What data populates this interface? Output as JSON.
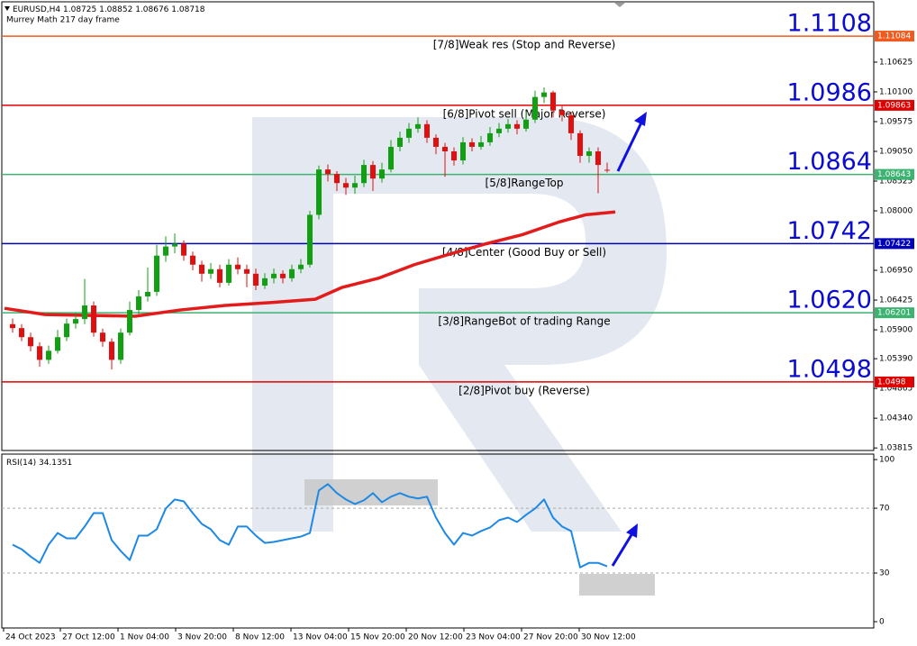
{
  "chart_data": [
    {
      "type": "candlestick",
      "title": "EURUSD,H4",
      "subtitle": "Murrey Math 217 day frame",
      "x": [
        12,
        22,
        32,
        42,
        52,
        62,
        72,
        82,
        92,
        102,
        112,
        122,
        132,
        142,
        152,
        162,
        172,
        182,
        192,
        202,
        212,
        222,
        232,
        242,
        252,
        262,
        272,
        282,
        292,
        302,
        312,
        322,
        332,
        342,
        352,
        362,
        372,
        382,
        392,
        402,
        412,
        422,
        432,
        442,
        452,
        462,
        472,
        482,
        492,
        502,
        512,
        522,
        532,
        542,
        552,
        562,
        572,
        582,
        592,
        602,
        612,
        622,
        632,
        642,
        652,
        662,
        672
      ],
      "open": [
        1.06,
        1.0593,
        1.0577,
        1.0561,
        1.0537,
        1.0553,
        1.0577,
        1.0601,
        1.0609,
        1.0633,
        1.0585,
        1.0569,
        1.0537,
        1.0585,
        1.0625,
        1.0649,
        1.0657,
        1.0721,
        1.0737,
        1.0742,
        1.0721,
        1.0705,
        1.0689,
        1.0697,
        1.0673,
        1.0705,
        1.0697,
        1.0689,
        1.0668,
        1.0681,
        1.0689,
        1.0681,
        1.0697,
        1.0705,
        1.0793,
        1.0873,
        1.0865,
        1.0849,
        1.0841,
        1.0849,
        1.0881,
        1.0857,
        1.0873,
        1.0913,
        1.0929,
        1.0945,
        1.0953,
        1.0929,
        1.0913,
        1.0905,
        1.0889,
        1.0921,
        1.0913,
        1.0921,
        1.0937,
        1.0945,
        1.0953,
        1.0945,
        1.0961,
        1.1001,
        1.1009,
        1.0977,
        1.0969,
        1.0937,
        1.0897,
        1.0905,
        1.08725
      ],
      "high": [
        1.061,
        1.06,
        1.0585,
        1.0568,
        1.0562,
        1.059,
        1.061,
        1.062,
        1.068,
        1.064,
        1.0592,
        1.0575,
        1.0592,
        1.064,
        1.066,
        1.07,
        1.074,
        1.0755,
        1.076,
        1.0748,
        1.0728,
        1.0712,
        1.0708,
        1.0705,
        1.0715,
        1.0718,
        1.0705,
        1.0698,
        1.069,
        1.0698,
        1.0695,
        1.0705,
        1.0715,
        1.08,
        1.088,
        1.0882,
        1.087,
        1.0858,
        1.0862,
        1.089,
        1.0888,
        1.0885,
        1.0925,
        1.094,
        1.0955,
        1.0965,
        1.096,
        1.0935,
        1.092,
        1.0912,
        1.093,
        1.0928,
        1.0932,
        1.0948,
        1.0955,
        1.0962,
        1.096,
        1.0975,
        1.1012,
        1.1018,
        1.1012,
        1.0985,
        1.0975,
        1.0942,
        1.0912,
        1.0912,
        1.08852
      ],
      "low": [
        1.0585,
        1.057,
        1.0552,
        1.0525,
        1.053,
        1.0548,
        1.057,
        1.0592,
        1.06,
        1.0578,
        1.056,
        1.052,
        1.053,
        1.058,
        1.0618,
        1.064,
        1.065,
        1.071,
        1.0725,
        1.0712,
        1.0695,
        1.0675,
        1.068,
        1.0665,
        1.0668,
        1.0688,
        1.0665,
        1.066,
        1.0662,
        1.0672,
        1.0672,
        1.0675,
        1.069,
        1.07,
        1.0785,
        1.0852,
        1.0835,
        1.0828,
        1.083,
        1.0842,
        1.0835,
        1.085,
        1.0868,
        1.0905,
        1.092,
        1.0938,
        1.092,
        1.09,
        1.086,
        1.088,
        1.0882,
        1.0905,
        1.0908,
        1.0915,
        1.093,
        1.0938,
        1.0935,
        1.094,
        1.0955,
        1.099,
        1.0965,
        1.0958,
        1.0925,
        1.0885,
        1.0885,
        1.0831,
        1.08676
      ],
      "close": [
        1.0593,
        1.0577,
        1.0561,
        1.0537,
        1.0553,
        1.0577,
        1.0601,
        1.0609,
        1.0633,
        1.0585,
        1.0569,
        1.0537,
        1.0585,
        1.0625,
        1.0649,
        1.0657,
        1.0721,
        1.0737,
        1.0742,
        1.0721,
        1.0705,
        1.0689,
        1.0697,
        1.0673,
        1.0705,
        1.0697,
        1.0689,
        1.0668,
        1.0681,
        1.0689,
        1.0681,
        1.0697,
        1.0705,
        1.0793,
        1.0873,
        1.0865,
        1.0849,
        1.0841,
        1.0849,
        1.0881,
        1.0857,
        1.0873,
        1.0913,
        1.0929,
        1.0945,
        1.0953,
        1.0929,
        1.0913,
        1.0905,
        1.0889,
        1.0921,
        1.0913,
        1.0921,
        1.0937,
        1.0945,
        1.0953,
        1.0945,
        1.0961,
        1.1001,
        1.1009,
        1.0977,
        1.0969,
        1.0937,
        1.0897,
        1.0905,
        1.0881,
        1.08718
      ],
      "up_color": "#11a011",
      "down_color": "#e01010",
      "xlim": [
        0,
        968
      ],
      "ylim": [
        1.0377,
        1.1169
      ],
      "yticks": [
        1.10625,
        {
          "value": 1.101,
          "label": "1.10100"
        },
        1.09575,
        {
          "value": 1.0905,
          "label": "1.09050"
        },
        1.08525,
        {
          "value": 1.08,
          "label": "1.08000"
        },
        {
          "value": 1.0695,
          "label": "1.06950"
        },
        1.06425,
        {
          "value": 1.059,
          "label": "1.05900"
        },
        {
          "value": 1.0539,
          "label": "1.05390"
        },
        1.04865,
        {
          "value": 1.0434,
          "label": "1.04340"
        },
        1.03815
      ],
      "ma": {
        "color": "#e31b1b",
        "x": [
          3,
          48,
          148,
          198,
          248,
          298,
          348,
          378,
          418,
          458,
          498,
          538,
          578,
          618,
          648,
          681
        ],
        "values": [
          1.0628,
          1.0617,
          1.0614,
          1.0625,
          1.0633,
          1.0638,
          1.0644,
          1.0665,
          1.0681,
          1.0705,
          1.0724,
          1.0742,
          1.0758,
          1.078,
          1.0793,
          1.0798
        ]
      },
      "levels": [
        {
          "value": 1.11084,
          "value_label": "1.1108",
          "label": "[7/8]Weak res (Stop and Reverse)",
          "color": "#f05a1e"
        },
        {
          "value": 1.09863,
          "value_label": "1.0986",
          "label": "[6/8]Pivot sell (Major Reverse)",
          "color": "#e00000"
        },
        {
          "value": 1.08643,
          "value_label": "1.0864",
          "label": "[5/8]RangeTop",
          "color": "#3cb371"
        },
        {
          "value": 1.07422,
          "value_label": "1.0742",
          "label": "[4/8]Center (Good Buy or Sell)",
          "color": "#0000b8"
        },
        {
          "value": 1.06201,
          "value_label": "1.0620",
          "label": "[3/8]RangeBot of trading Range",
          "color": "#3cb371"
        },
        {
          "value": 1.0498,
          "value_label": "1.0498",
          "label": "[2/8]Pivot buy (Reverse)",
          "color": "#e00000"
        }
      ]
    },
    {
      "type": "line",
      "title": "RSI(14)",
      "color": "#1e88e5",
      "x": [
        12,
        22,
        32,
        42,
        52,
        62,
        72,
        82,
        92,
        102,
        112,
        122,
        132,
        142,
        152,
        162,
        172,
        182,
        192,
        202,
        212,
        222,
        232,
        242,
        252,
        262,
        272,
        282,
        292,
        302,
        312,
        322,
        332,
        342,
        352,
        362,
        372,
        382,
        392,
        402,
        412,
        422,
        432,
        442,
        452,
        462,
        472,
        482,
        492,
        502,
        512,
        522,
        532,
        542,
        552,
        562,
        572,
        582,
        592,
        602,
        612,
        622,
        632,
        642,
        652,
        662,
        672
      ],
      "values": [
        47.5,
        44.7,
        40.2,
        36.3,
        47.5,
        54.7,
        51.4,
        51.4,
        58.7,
        67,
        67,
        50.3,
        43.6,
        38,
        53.1,
        53.1,
        57,
        69.8,
        75.4,
        74.3,
        67,
        60.3,
        57,
        50.3,
        47.5,
        58.7,
        58.7,
        53.1,
        48.6,
        49.2,
        50.3,
        51.4,
        52.5,
        54.7,
        81,
        84.9,
        79.3,
        75.4,
        72.6,
        74.9,
        79.3,
        73.7,
        77.1,
        79.3,
        77.1,
        76,
        77.1,
        64.2,
        54.7,
        47.5,
        54.7,
        53.1,
        55.9,
        58.1,
        62.6,
        64.2,
        61.5,
        65.9,
        69.8,
        75.4,
        64.2,
        58.7,
        55.9,
        33.5,
        36.3,
        36.3,
        34.1351
      ],
      "xlim": [
        0,
        968
      ],
      "ylim": [
        -3.9,
        103.4
      ],
      "yticks": [
        0,
        30,
        70,
        100
      ],
      "levels": [
        30,
        70
      ],
      "xticks": [
        {
          "value": 2,
          "label": "24 Oct 2023"
        },
        {
          "value": 65,
          "label": "27 Oct 12:00"
        },
        {
          "value": 129,
          "label": "1 Nov 04:00"
        },
        {
          "value": 193,
          "label": "3 Nov 20:00"
        },
        {
          "value": 257,
          "label": "8 Nov 12:00"
        },
        {
          "value": 321,
          "label": "13 Nov 04:00"
        },
        {
          "value": 385,
          "label": "15 Nov 20:00"
        },
        {
          "value": 449,
          "label": "20 Nov 12:00"
        },
        {
          "value": 513,
          "label": "23 Nov 04:00"
        },
        {
          "value": 577,
          "label": "27 Nov 20:00"
        },
        {
          "value": 641,
          "label": "30 Nov 12:00"
        }
      ]
    }
  ]
}
